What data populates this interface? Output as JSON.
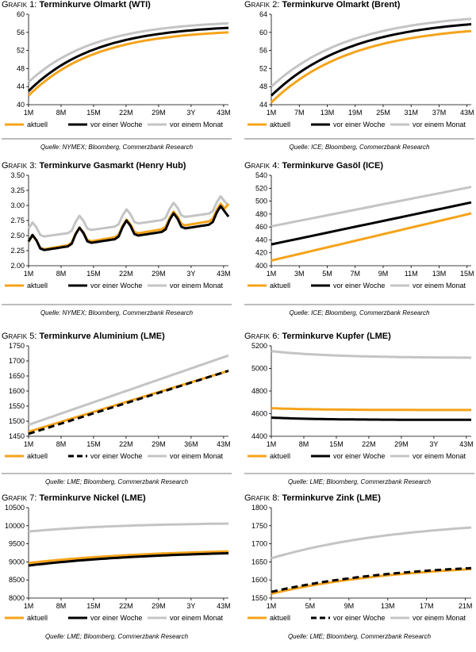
{
  "colors": {
    "aktuell": "#f5a31a",
    "woche": "#000000",
    "monat": "#c4c4c4"
  },
  "legend": {
    "aktuell": "aktuell",
    "woche": "vor einer Woche",
    "monat": "vor einem Monat"
  },
  "panels": [
    {
      "gp": "Grafik",
      "num": "1:",
      "title": "Terminkurve Olmarkt (WTI)",
      "source": "Quelle: NYMEX; Bloomberg, Commerzbank Research"
    },
    {
      "gp": "Grafik",
      "num": "2:",
      "title": "Terminkurve Olmarkt (Brent)",
      "source": "Quelle: ICE; Bloomberg, Commerzbank Research"
    },
    {
      "gp": "Grafik",
      "num": "3:",
      "title": "Terminkurve Gasmarkt (Henry Hub)",
      "source": "Quelle: NYMEX; Bloomberg, Commerzbank Research"
    },
    {
      "gp": "Grafik",
      "num": "4:",
      "title": "Terminkurve Gasöl (ICE)",
      "source": "Quelle: ICE; Bloomberg, Commerzbank Research"
    },
    {
      "gp": "Grafik",
      "num": "5:",
      "title": " Terminkurve Aluminium (LME)",
      "source": "Quelle: LME; Bloomberg, Commerzbank Research"
    },
    {
      "gp": "Grafik",
      "num": "6:",
      "title": "Terminkurve Kupfer (LME)",
      "source": "Quelle: LME; Bloomberg, Commerzbank Research"
    },
    {
      "gp": "Grafik",
      "num": "7:",
      "title": "Terminkurve Nickel (LME)",
      "source": "Quelle: LME; Bloomberg, Commerzbank Research"
    },
    {
      "gp": "Grafik",
      "num": "8:",
      "title": "Terminkurve Zink (LME)",
      "source": "Quelle: LME; Bloomberg, Commerzbank Research"
    }
  ],
  "chart_data": [
    {
      "type": "line",
      "title": "Terminkurve Olmarkt (WTI)",
      "n": 50,
      "ylim": [
        40,
        60
      ],
      "yticks": [
        40,
        44,
        48,
        52,
        56,
        60
      ],
      "xticks": [
        "1M",
        "8M",
        "15M",
        "22M",
        "29M",
        "3Y",
        "43M"
      ],
      "series": [
        {
          "name": "aktuell",
          "kind": "curve",
          "start": 42.0,
          "end": 56.0,
          "rate": 3.0
        },
        {
          "name": "vor einer Woche",
          "kind": "curve",
          "start": 43.0,
          "end": 57.0,
          "rate": 3.0
        },
        {
          "name": "vor einem Monat",
          "kind": "curve",
          "start": 45.0,
          "end": 58.0,
          "rate": 3.0
        }
      ]
    },
    {
      "type": "line",
      "title": "Terminkurve Olmarkt (Brent)",
      "n": 50,
      "ylim": [
        44,
        64
      ],
      "yticks": [
        44,
        48,
        52,
        56,
        60,
        64
      ],
      "xticks": [
        "1M",
        "7M",
        "13M",
        "19M",
        "25M",
        "31M",
        "37M",
        "43M"
      ],
      "series": [
        {
          "name": "aktuell",
          "kind": "curve",
          "start": 44.5,
          "end": 60.3,
          "rate": 2.5
        },
        {
          "name": "vor einer Woche",
          "kind": "curve",
          "start": 46.0,
          "end": 61.8,
          "rate": 2.5
        },
        {
          "name": "vor einem Monat",
          "kind": "curve",
          "start": 48.0,
          "end": 63.0,
          "rate": 2.5
        }
      ]
    },
    {
      "type": "line",
      "title": "Terminkurve Gasmarkt (Henry Hub)",
      "n": 52,
      "ylim": [
        2.0,
        3.5
      ],
      "yticks": [
        "2.00",
        "2.25",
        "2.50",
        "2.75",
        "3.00",
        "3.25",
        "3.50"
      ],
      "xticks": [
        "1M",
        "8M",
        "15M",
        "22M",
        "29M",
        "3Y",
        "43M"
      ],
      "series": [
        {
          "name": "aktuell",
          "kind": "seasonal",
          "base": 2.23,
          "slope": 0.011,
          "amp": 0.26,
          "offset": 0.0,
          "endbump": 0.2
        },
        {
          "name": "vor einer Woche",
          "kind": "seasonal",
          "base": 2.2,
          "slope": 0.01,
          "amp": 0.28,
          "offset": 0.02,
          "endbump": 0.05
        },
        {
          "name": "vor einem Monat",
          "kind": "seasonal",
          "base": 2.38,
          "slope": 0.009,
          "amp": 0.26,
          "offset": 0.07,
          "endbump": 0.06
        }
      ]
    },
    {
      "type": "line",
      "title": "Terminkurve Gasöl (ICE)",
      "n": 15,
      "ylim": [
        400,
        540
      ],
      "yticks": [
        400,
        420,
        440,
        460,
        480,
        500,
        520,
        540
      ],
      "xticks": [
        "1M",
        "3M",
        "5M",
        "7M",
        "9M",
        "11M",
        "13M",
        "15M"
      ],
      "series": [
        {
          "name": "aktuell",
          "kind": "linear",
          "start": 408,
          "end": 481
        },
        {
          "name": "vor einer Woche",
          "kind": "linear",
          "start": 433,
          "end": 498
        },
        {
          "name": "vor einem Monat",
          "kind": "linear",
          "start": 461,
          "end": 522
        }
      ]
    },
    {
      "type": "line",
      "title": "Terminkurve Aluminium (LME)",
      "n": 50,
      "ylim": [
        1450,
        1750
      ],
      "yticks": [
        1450,
        1500,
        1550,
        1600,
        1650,
        1700,
        1750
      ],
      "xticks": [
        "1M",
        "8M",
        "15M",
        "22M",
        "29M",
        "36M",
        "43M"
      ],
      "series": [
        {
          "name": "aktuell",
          "kind": "linear",
          "start": 1465,
          "end": 1667
        },
        {
          "name": "vor einer Woche",
          "kind": "linear",
          "start": 1458,
          "end": 1667,
          "dash": true
        },
        {
          "name": "vor einem Monat",
          "kind": "linear",
          "start": 1488,
          "end": 1718
        }
      ]
    },
    {
      "type": "line",
      "title": "Terminkurve Kupfer (LME)",
      "n": 50,
      "ylim": [
        4400,
        5200
      ],
      "yticks": [
        4400,
        4600,
        4800,
        5000,
        5200
      ],
      "xticks": [
        "1M",
        "8M",
        "15M",
        "22M",
        "29M",
        "3Y",
        "43M"
      ],
      "series": [
        {
          "name": "aktuell",
          "kind": "curve",
          "start": 4648,
          "end": 4632,
          "rate": 4.0
        },
        {
          "name": "vor einer Woche",
          "kind": "curve",
          "start": 4565,
          "end": 4545,
          "rate": 4.0
        },
        {
          "name": "vor einem Monat",
          "kind": "curve",
          "start": 5152,
          "end": 5095,
          "rate": 3.0
        }
      ]
    },
    {
      "type": "line",
      "title": "Terminkurve Nickel (LME)",
      "n": 50,
      "ylim": [
        8000,
        10500
      ],
      "yticks": [
        8000,
        8500,
        9000,
        9500,
        10000,
        10500
      ],
      "xticks": [
        "1M",
        "8M",
        "15M",
        "22M",
        "29M",
        "3Y",
        "43M"
      ],
      "series": [
        {
          "name": "aktuell",
          "kind": "curve",
          "start": 8970,
          "end": 9290,
          "rate": 1.5
        },
        {
          "name": "vor einer Woche",
          "kind": "curve",
          "start": 8900,
          "end": 9240,
          "rate": 1.5
        },
        {
          "name": "vor einem Monat",
          "kind": "curve",
          "start": 9840,
          "end": 10060,
          "rate": 2.0
        }
      ]
    },
    {
      "type": "line",
      "title": "Terminkurve Zink (LME)",
      "n": 27,
      "ylim": [
        1550,
        1800
      ],
      "yticks": [
        1550,
        1600,
        1650,
        1700,
        1750,
        1800
      ],
      "xticks": [
        "1M",
        "5M",
        "9M",
        "13M",
        "17M",
        "21M"
      ],
      "series": [
        {
          "name": "aktuell",
          "kind": "curve",
          "start": 1562,
          "end": 1630,
          "rate": 1.5
        },
        {
          "name": "vor einer Woche",
          "kind": "curve",
          "start": 1567,
          "end": 1633,
          "rate": 1.5,
          "dash": true
        },
        {
          "name": "vor einem Monat",
          "kind": "curve",
          "start": 1660,
          "end": 1745,
          "rate": 1.5
        }
      ]
    }
  ]
}
